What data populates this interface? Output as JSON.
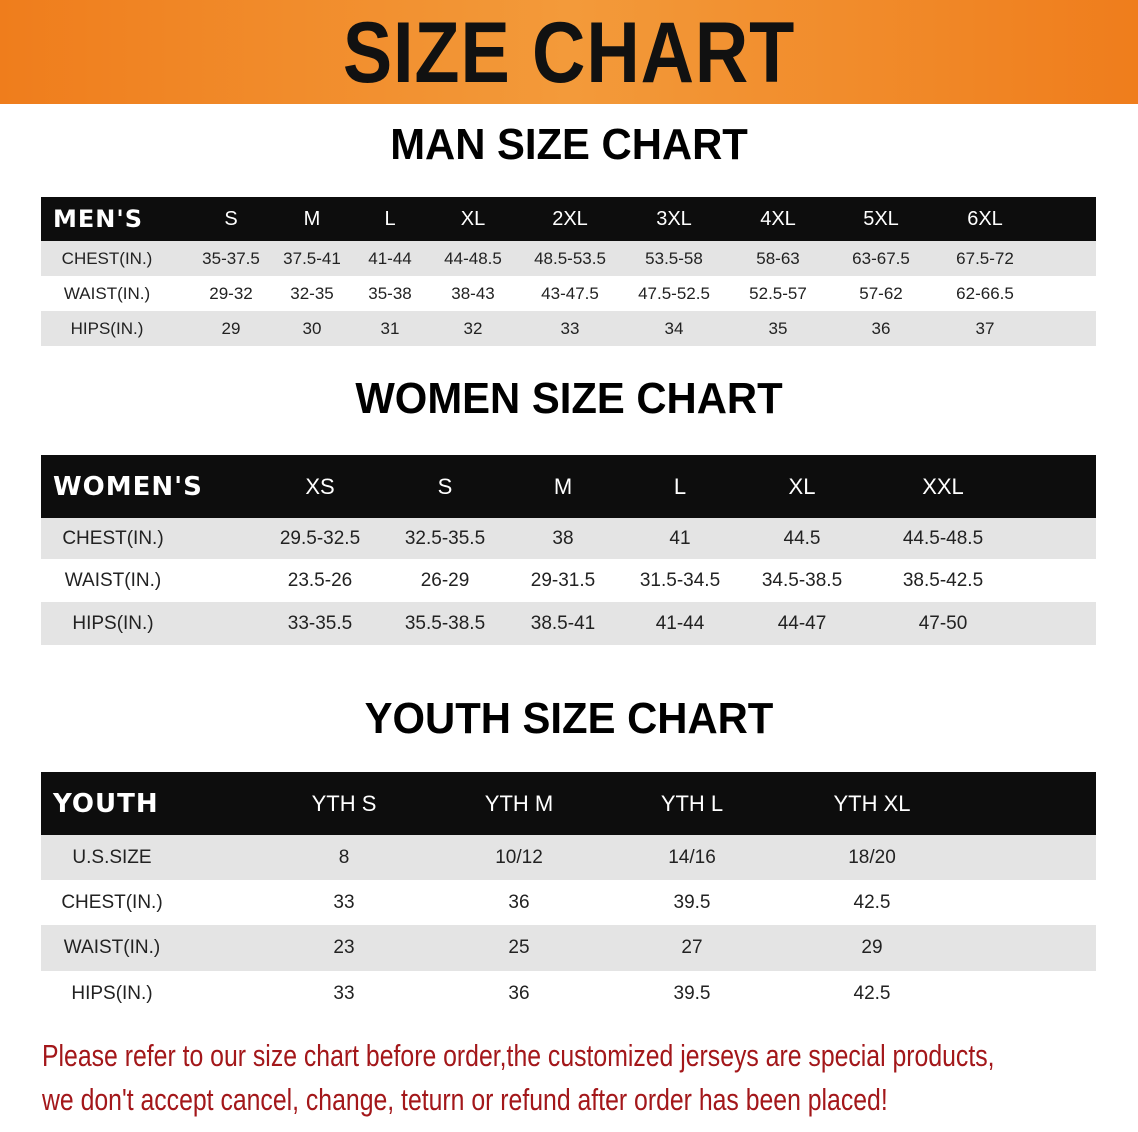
{
  "banner": {
    "title": "SIZE CHART",
    "color": "#ef7d1c"
  },
  "men": {
    "title": "MAN SIZE CHART",
    "header": [
      "MEN'S",
      "S",
      "M",
      "L",
      "XL",
      "2XL",
      "3XL",
      "4XL",
      "5XL",
      "6XL"
    ],
    "rows": [
      [
        "CHEST(IN.)",
        "35-37.5",
        "37.5-41",
        "41-44",
        "44-48.5",
        "48.5-53.5",
        "53.5-58",
        "58-63",
        "63-67.5",
        "67.5-72"
      ],
      [
        "WAIST(IN.)",
        "29-32",
        "32-35",
        "35-38",
        "38-43",
        "43-47.5",
        "47.5-52.5",
        "52.5-57",
        "57-62",
        "62-66.5"
      ],
      [
        "HIPS(IN.)",
        "29",
        "30",
        "31",
        "32",
        "33",
        "34",
        "35",
        "36",
        "37"
      ]
    ]
  },
  "women": {
    "title": "WOMEN SIZE CHART",
    "header": [
      "WOMEN'S",
      "XS",
      "S",
      "M",
      "L",
      "XL",
      "XXL"
    ],
    "rows": [
      [
        "CHEST(IN.)",
        "29.5-32.5",
        "32.5-35.5",
        "38",
        "41",
        "44.5",
        "44.5-48.5"
      ],
      [
        "WAIST(IN.)",
        "23.5-26",
        "26-29",
        "29-31.5",
        "31.5-34.5",
        "34.5-38.5",
        "38.5-42.5"
      ],
      [
        "HIPS(IN.)",
        "33-35.5",
        "35.5-38.5",
        "38.5-41",
        "41-44",
        "44-47",
        "47-50"
      ]
    ]
  },
  "youth": {
    "title": "YOUTH SIZE CHART",
    "header": [
      "YOUTH",
      "YTH S",
      "YTH M",
      "YTH L",
      "YTH XL"
    ],
    "rows": [
      [
        "U.S.SIZE",
        "8",
        "10/12",
        "14/16",
        "18/20"
      ],
      [
        "CHEST(IN.)",
        "33",
        "36",
        "39.5",
        "42.5"
      ],
      [
        "WAIST(IN.)",
        "23",
        "25",
        "27",
        "29"
      ],
      [
        "HIPS(IN.)",
        "33",
        "36",
        "39.5",
        "42.5"
      ]
    ]
  },
  "notice": {
    "line1": "Please refer to our size chart before order,the customized jerseys are special products,",
    "line2": "we don't accept cancel, change, teturn or refund after order has been placed!",
    "color": "#a3171a"
  }
}
